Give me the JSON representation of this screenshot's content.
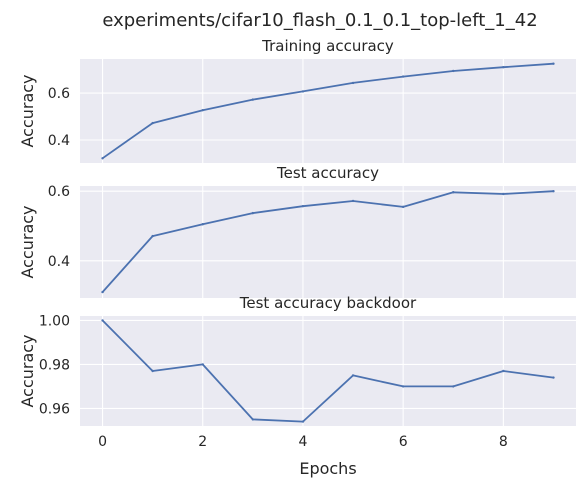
{
  "figure": {
    "suptitle": "experiments/cifar10_flash_0.1_0.1_top-left_1_42"
  },
  "style": {
    "background": "#eaeaf2",
    "grid": "#ffffff",
    "line": "#4c72b0",
    "text": "#262626"
  },
  "chart_data": [
    {
      "type": "line",
      "title": "Training accuracy",
      "xlabel": "",
      "ylabel": "Accuracy",
      "x": [
        0,
        1,
        2,
        3,
        4,
        5,
        6,
        7,
        8,
        9
      ],
      "series": [
        {
          "values": [
            0.322,
            0.472,
            0.527,
            0.572,
            0.607,
            0.643,
            0.67,
            0.694,
            0.71,
            0.725
          ]
        }
      ],
      "xticks": [
        0,
        2,
        4,
        6,
        8
      ],
      "yticks": [
        0.4,
        0.6
      ],
      "ytick_labels": [
        "0.4",
        "0.6"
      ],
      "xlim": [
        -0.45,
        9.45
      ],
      "ylim": [
        0.302,
        0.745
      ],
      "grid": true
    },
    {
      "type": "line",
      "title": "Test accuracy",
      "xlabel": "",
      "ylabel": "Accuracy",
      "x": [
        0,
        1,
        2,
        3,
        4,
        5,
        6,
        7,
        8,
        9
      ],
      "series": [
        {
          "values": [
            0.31,
            0.471,
            0.505,
            0.537,
            0.557,
            0.572,
            0.555,
            0.597,
            0.592,
            0.6
          ]
        }
      ],
      "xticks": [
        0,
        2,
        4,
        6,
        8
      ],
      "yticks": [
        0.4,
        0.6
      ],
      "ytick_labels": [
        "0.4",
        "0.6"
      ],
      "xlim": [
        -0.45,
        9.45
      ],
      "ylim": [
        0.293,
        0.615
      ],
      "grid": true
    },
    {
      "type": "line",
      "title": "Test accuracy backdoor",
      "xlabel": "Epochs",
      "ylabel": "Accuracy",
      "x": [
        0,
        1,
        2,
        3,
        4,
        5,
        6,
        7,
        8,
        9
      ],
      "series": [
        {
          "values": [
            1.0,
            0.977,
            0.98,
            0.955,
            0.954,
            0.975,
            0.97,
            0.97,
            0.977,
            0.974
          ]
        }
      ],
      "xticks": [
        0,
        2,
        4,
        6,
        8
      ],
      "xtick_labels": [
        "0",
        "2",
        "4",
        "6",
        "8"
      ],
      "yticks": [
        0.96,
        0.98,
        1.0
      ],
      "ytick_labels": [
        "0.96",
        "0.98",
        "1.00"
      ],
      "xlim": [
        -0.45,
        9.45
      ],
      "ylim": [
        0.952,
        1.002
      ],
      "grid": true
    }
  ]
}
